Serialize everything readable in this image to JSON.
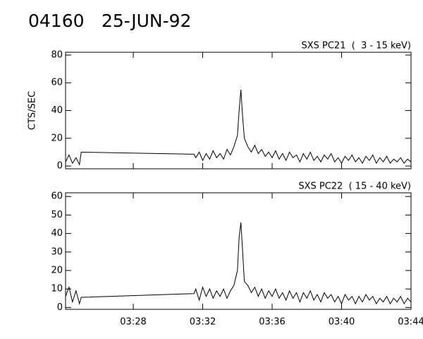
{
  "header": {
    "id": "04160",
    "date": "25-JUN-92"
  },
  "chart_data": [
    {
      "type": "line",
      "subtitle": "SXS PC21  (  3 - 15 keV)",
      "ylabel": "CTS/SEC",
      "xlim": [
        24.1,
        44
      ],
      "ylim": [
        -2,
        82
      ],
      "yticks": [
        0,
        20,
        40,
        60,
        80
      ],
      "color": "#000000",
      "x": [
        24.1,
        24.3,
        24.5,
        24.7,
        24.9,
        25.0,
        31.5,
        31.6,
        31.8,
        32.0,
        32.2,
        32.4,
        32.6,
        32.8,
        33.0,
        33.2,
        33.4,
        33.6,
        33.8,
        34.0,
        34.1,
        34.2,
        34.3,
        34.4,
        34.6,
        34.8,
        35.0,
        35.2,
        35.4,
        35.6,
        35.8,
        36.0,
        36.2,
        36.4,
        36.6,
        36.8,
        37.0,
        37.2,
        37.4,
        37.6,
        37.8,
        38.0,
        38.2,
        38.4,
        38.6,
        38.8,
        39.0,
        39.2,
        39.4,
        39.6,
        39.8,
        40.0,
        40.2,
        40.4,
        40.6,
        40.8,
        41.0,
        41.2,
        41.4,
        41.6,
        41.8,
        42.0,
        42.2,
        42.4,
        42.6,
        42.8,
        43.0,
        43.2,
        43.4,
        43.6,
        43.8,
        44.0
      ],
      "values": [
        3,
        8,
        2,
        6,
        1,
        10,
        8.5,
        6,
        10,
        4,
        9,
        5,
        11,
        6,
        9,
        5,
        12,
        8,
        14,
        22,
        40,
        55,
        35,
        20,
        14,
        10,
        15,
        9,
        12,
        7,
        10,
        6,
        11,
        5,
        9,
        4,
        10,
        6,
        8,
        3,
        9,
        5,
        10,
        4,
        7,
        3,
        8,
        5,
        9,
        3,
        6,
        2,
        7,
        4,
        8,
        3,
        6,
        2,
        7,
        4,
        8,
        2,
        6,
        3,
        7,
        2,
        5,
        3,
        6,
        2,
        5,
        3
      ]
    },
    {
      "type": "line",
      "subtitle": "SXS PC22  ( 15 - 40 keV)",
      "xlim": [
        24.1,
        44
      ],
      "ylim": [
        -1,
        62
      ],
      "yticks": [
        0,
        10,
        20,
        30,
        40,
        50,
        60
      ],
      "color": "#000000",
      "xticks": [
        {
          "value": 28,
          "label": "03:28"
        },
        {
          "value": 32,
          "label": "03:32"
        },
        {
          "value": 36,
          "label": "03:36"
        },
        {
          "value": 40,
          "label": "03:40"
        },
        {
          "value": 44,
          "label": "03:44"
        }
      ],
      "x": [
        24.1,
        24.3,
        24.5,
        24.7,
        24.9,
        25.0,
        31.5,
        31.6,
        31.8,
        32.0,
        32.2,
        32.4,
        32.6,
        32.8,
        33.0,
        33.2,
        33.4,
        33.6,
        33.8,
        34.0,
        34.1,
        34.2,
        34.3,
        34.4,
        34.6,
        34.8,
        35.0,
        35.2,
        35.4,
        35.6,
        35.8,
        36.0,
        36.2,
        36.4,
        36.6,
        36.8,
        37.0,
        37.2,
        37.4,
        37.6,
        37.8,
        38.0,
        38.2,
        38.4,
        38.6,
        38.8,
        39.0,
        39.2,
        39.4,
        39.6,
        39.8,
        40.0,
        40.2,
        40.4,
        40.6,
        40.8,
        41.0,
        41.2,
        41.4,
        41.6,
        41.8,
        42.0,
        42.2,
        42.4,
        42.6,
        42.8,
        43.0,
        43.2,
        43.4,
        43.6,
        43.8,
        44.0
      ],
      "values": [
        6,
        11,
        3,
        9,
        2,
        5.5,
        7.5,
        10,
        4,
        11,
        6,
        10,
        5,
        9,
        6,
        10,
        5,
        9,
        12,
        20,
        38,
        46,
        30,
        14,
        12,
        8,
        11,
        6,
        10,
        5,
        9,
        6,
        10,
        5,
        8,
        4,
        9,
        5,
        8,
        3,
        8,
        5,
        9,
        4,
        7,
        3,
        8,
        5,
        7,
        3,
        6,
        2,
        7,
        4,
        6,
        2,
        6,
        3,
        7,
        4,
        6,
        2,
        5,
        3,
        6,
        2,
        5,
        3,
        6,
        2,
        5,
        3
      ]
    }
  ]
}
